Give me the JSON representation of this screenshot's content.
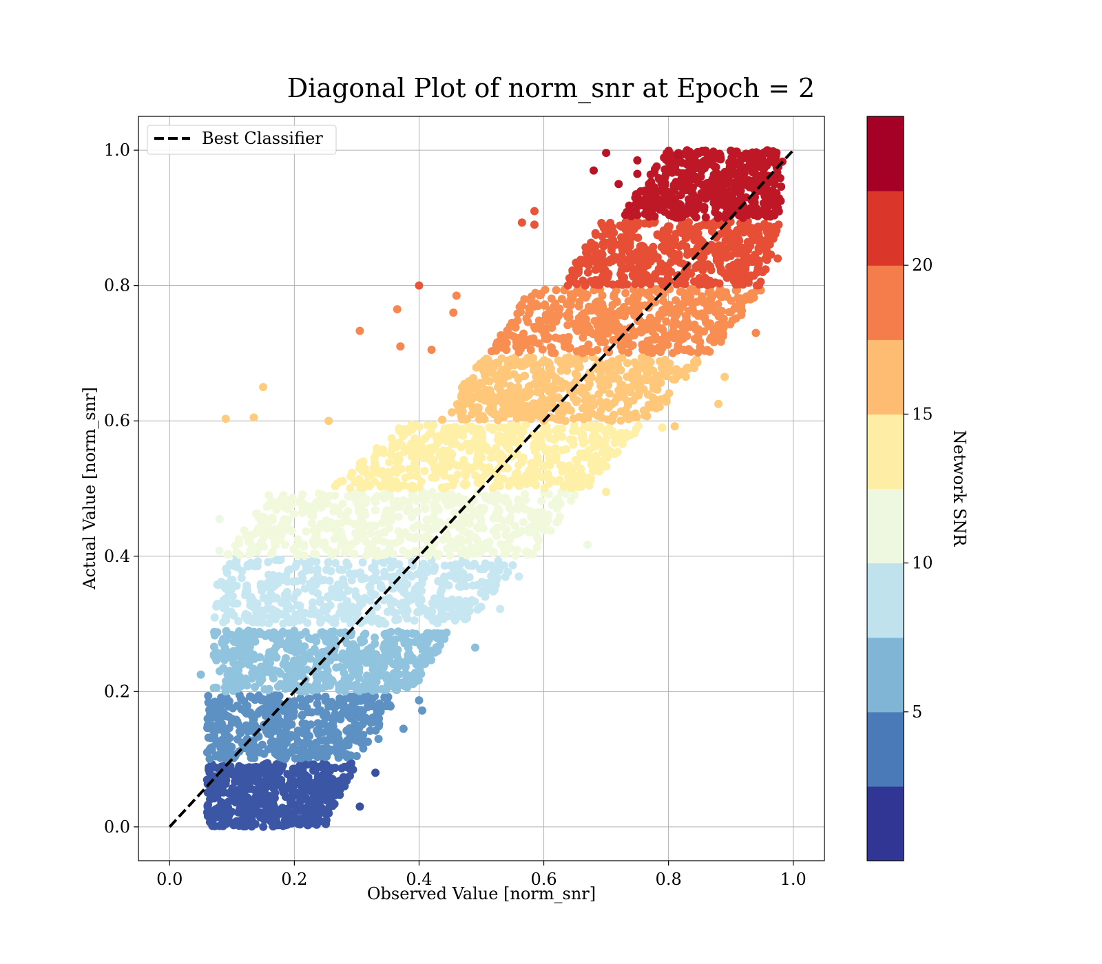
{
  "chart_data": {
    "type": "scatter",
    "title": "Diagonal Plot of norm_snr at Epoch = 2",
    "xlabel": "Observed Value [norm_snr]",
    "ylabel": "Actual Value [norm_snr]",
    "xlim": [
      -0.05,
      1.05
    ],
    "ylim": [
      -0.05,
      1.05
    ],
    "xticks": [
      "0.0",
      "0.2",
      "0.4",
      "0.6",
      "0.8",
      "1.0"
    ],
    "yticks": [
      "0.0",
      "0.2",
      "0.4",
      "0.6",
      "0.8",
      "1.0"
    ],
    "grid": true,
    "legend": {
      "position": "top-left",
      "entries": [
        "Best Classifier"
      ]
    },
    "reference_line": {
      "name": "Best Classifier",
      "style": "dashed",
      "color": "#000000",
      "points": [
        [
          0,
          0
        ],
        [
          1,
          1
        ]
      ]
    },
    "colorbar": {
      "label": "Network SNR",
      "range": [
        0,
        25
      ],
      "ticks": [
        "5",
        "10",
        "15",
        "20"
      ],
      "colors": [
        "#313695",
        "#4575b4",
        "#74add1",
        "#abd9e9",
        "#e0f3f8",
        "#ffffbf",
        "#fee090",
        "#fdae61",
        "#f46d43",
        "#d73027",
        "#a50026"
      ],
      "band_colors": [
        "#313695",
        "#4a7ab7",
        "#80b5d6",
        "#bfe2ed",
        "#eef7df",
        "#feeda4",
        "#fdbc71",
        "#f57d4c",
        "#da372a",
        "#a50026"
      ]
    },
    "bands": [
      {
        "snr": 1.25,
        "y": [
          0.0,
          0.095
        ],
        "x_lo": [
          0.06,
          0.06
        ],
        "x_hi": [
          0.25,
          0.3
        ]
      },
      {
        "snr": 3.75,
        "y": [
          0.1,
          0.195
        ],
        "x_lo": [
          0.06,
          0.06
        ],
        "x_hi": [
          0.3,
          0.37
        ]
      },
      {
        "snr": 6.25,
        "y": [
          0.2,
          0.29
        ],
        "x_lo": [
          0.07,
          0.07
        ],
        "x_hi": [
          0.39,
          0.45
        ]
      },
      {
        "snr": 8.75,
        "y": [
          0.3,
          0.395
        ],
        "x_lo": [
          0.07,
          0.08
        ],
        "x_hi": [
          0.48,
          0.56
        ]
      },
      {
        "snr": 11.25,
        "y": [
          0.4,
          0.495
        ],
        "x_lo": [
          0.09,
          0.16
        ],
        "x_hi": [
          0.58,
          0.66
        ]
      },
      {
        "snr": 13.75,
        "y": [
          0.5,
          0.595
        ],
        "x_lo": [
          0.26,
          0.37
        ],
        "x_hi": [
          0.67,
          0.76
        ]
      },
      {
        "snr": 16.25,
        "y": [
          0.6,
          0.695
        ],
        "x_lo": [
          0.43,
          0.5
        ],
        "x_hi": [
          0.77,
          0.86
        ]
      },
      {
        "snr": 18.75,
        "y": [
          0.7,
          0.795
        ],
        "x_lo": [
          0.51,
          0.58
        ],
        "x_hi": [
          0.87,
          0.95
        ]
      },
      {
        "snr": 21.25,
        "y": [
          0.8,
          0.895
        ],
        "x_lo": [
          0.63,
          0.69
        ],
        "x_hi": [
          0.95,
          0.98
        ]
      },
      {
        "snr": 23.75,
        "y": [
          0.9,
          1.0
        ],
        "x_lo": [
          0.72,
          0.8
        ],
        "x_hi": [
          0.98,
          0.985
        ]
      }
    ],
    "outliers": [
      {
        "x": 0.09,
        "y": 0.603,
        "snr": 16
      },
      {
        "x": 0.135,
        "y": 0.605,
        "snr": 16
      },
      {
        "x": 0.15,
        "y": 0.65,
        "snr": 16
      },
      {
        "x": 0.255,
        "y": 0.6,
        "snr": 16
      },
      {
        "x": 0.305,
        "y": 0.733,
        "snr": 19
      },
      {
        "x": 0.365,
        "y": 0.765,
        "snr": 19
      },
      {
        "x": 0.4,
        "y": 0.8,
        "snr": 21
      },
      {
        "x": 0.37,
        "y": 0.71,
        "snr": 19
      },
      {
        "x": 0.42,
        "y": 0.705,
        "snr": 19
      },
      {
        "x": 0.46,
        "y": 0.785,
        "snr": 19
      },
      {
        "x": 0.455,
        "y": 0.76,
        "snr": 19
      },
      {
        "x": 0.565,
        "y": 0.893,
        "snr": 21
      },
      {
        "x": 0.585,
        "y": 0.91,
        "snr": 21
      },
      {
        "x": 0.585,
        "y": 0.89,
        "snr": 21
      },
      {
        "x": 0.68,
        "y": 0.97,
        "snr": 24
      },
      {
        "x": 0.7,
        "y": 0.996,
        "snr": 24
      },
      {
        "x": 0.72,
        "y": 0.95,
        "snr": 24
      },
      {
        "x": 0.75,
        "y": 0.965,
        "snr": 24
      },
      {
        "x": 0.75,
        "y": 0.985,
        "snr": 24
      },
      {
        "x": 0.815,
        "y": 0.993,
        "snr": 24
      },
      {
        "x": 0.08,
        "y": 0.455,
        "snr": 11
      },
      {
        "x": 0.08,
        "y": 0.408,
        "snr": 11
      },
      {
        "x": 0.67,
        "y": 0.417,
        "snr": 11
      },
      {
        "x": 0.7,
        "y": 0.495,
        "snr": 14
      },
      {
        "x": 0.81,
        "y": 0.592,
        "snr": 16
      },
      {
        "x": 0.79,
        "y": 0.59,
        "snr": 14
      },
      {
        "x": 0.88,
        "y": 0.625,
        "snr": 16
      },
      {
        "x": 0.89,
        "y": 0.665,
        "snr": 16
      },
      {
        "x": 0.94,
        "y": 0.73,
        "snr": 19
      },
      {
        "x": 0.975,
        "y": 0.84,
        "snr": 21
      },
      {
        "x": 0.49,
        "y": 0.265,
        "snr": 6
      },
      {
        "x": 0.405,
        "y": 0.172,
        "snr": 4
      },
      {
        "x": 0.4,
        "y": 0.187,
        "snr": 4
      },
      {
        "x": 0.33,
        "y": 0.08,
        "snr": 1
      },
      {
        "x": 0.305,
        "y": 0.03,
        "snr": 1
      },
      {
        "x": 0.56,
        "y": 0.37,
        "snr": 9
      },
      {
        "x": 0.53,
        "y": 0.322,
        "snr": 9
      },
      {
        "x": 0.335,
        "y": 0.13,
        "snr": 4
      },
      {
        "x": 0.375,
        "y": 0.145,
        "snr": 4
      },
      {
        "x": 0.05,
        "y": 0.225,
        "snr": 6
      }
    ]
  }
}
